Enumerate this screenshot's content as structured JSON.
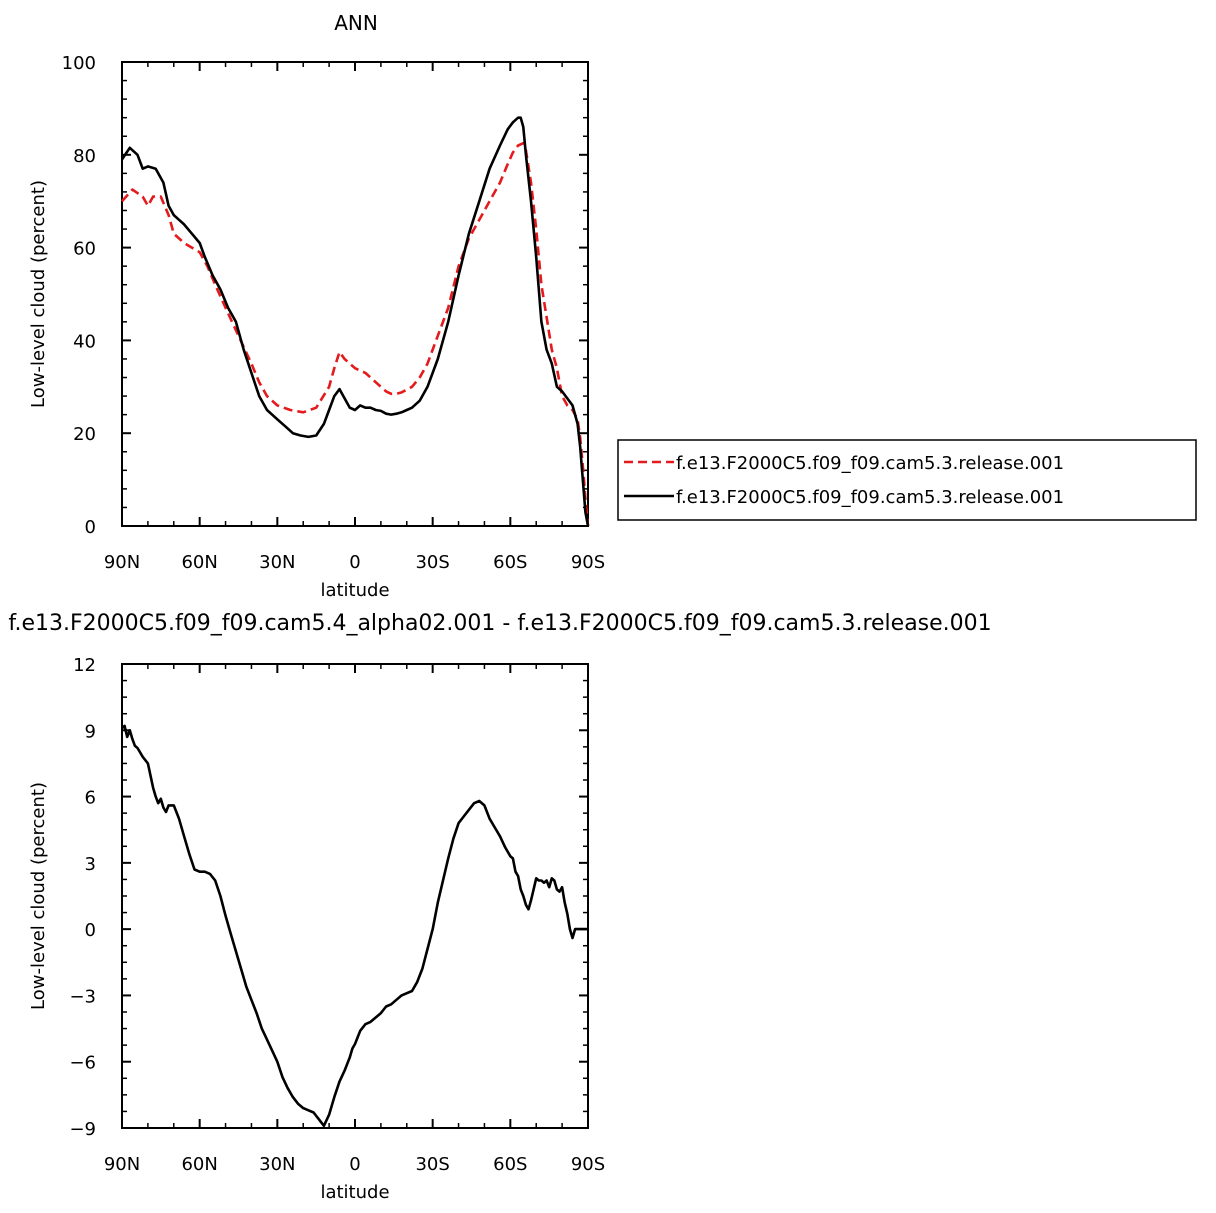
{
  "chart_data": [
    {
      "type": "line",
      "title": "ANN",
      "xlabel": "latitude",
      "ylabel": "Low-level cloud (percent)",
      "xlim": [
        90,
        -90
      ],
      "ylim": [
        0,
        100
      ],
      "x_ticks": [
        {
          "value": 90,
          "label": "90N"
        },
        {
          "value": 60,
          "label": "60N"
        },
        {
          "value": 30,
          "label": "30N"
        },
        {
          "value": 0,
          "label": "0"
        },
        {
          "value": -30,
          "label": "30S"
        },
        {
          "value": -60,
          "label": "60S"
        },
        {
          "value": -90,
          "label": "90S"
        }
      ],
      "y_ticks": [
        {
          "value": 0,
          "label": "0"
        },
        {
          "value": 20,
          "label": "20"
        },
        {
          "value": 40,
          "label": "40"
        },
        {
          "value": 60,
          "label": "60"
        },
        {
          "value": 80,
          "label": "80"
        },
        {
          "value": 100,
          "label": "100"
        }
      ],
      "legend_position": "right",
      "series": [
        {
          "name": "f.e13.F2000C5.f09_f09.cam5.3.release.001",
          "color": "#e41a1c",
          "dash": "dashed",
          "x": [
            90,
            86,
            82,
            80,
            78,
            75,
            72,
            70,
            66,
            63,
            60,
            57,
            54,
            50,
            45,
            40,
            37,
            34,
            30,
            25,
            20,
            15,
            10,
            8,
            6,
            4,
            2,
            0,
            -4,
            -8,
            -10,
            -12,
            -14,
            -16,
            -18,
            -22,
            -25,
            -28,
            -32,
            -36,
            -40,
            -44,
            -48,
            -52,
            -56,
            -59,
            -61,
            -63,
            -65,
            -66,
            -68,
            -70,
            -72,
            -74,
            -76,
            -78,
            -80,
            -82,
            -84,
            -86,
            -87,
            -88,
            -89,
            -90
          ],
          "y": [
            70,
            72.5,
            71,
            69,
            71,
            71,
            67,
            63,
            61,
            60,
            59,
            56,
            52,
            47,
            41,
            35,
            31,
            28,
            26,
            25,
            24.5,
            25.5,
            30,
            34,
            37.5,
            36,
            35,
            34,
            33,
            31,
            30,
            29,
            28.5,
            28.5,
            28.8,
            30,
            32,
            35,
            41,
            47,
            56,
            62,
            66,
            70,
            74,
            78,
            80.5,
            82,
            82.5,
            81,
            74,
            64,
            52,
            45,
            38,
            34,
            28,
            26,
            25,
            23,
            19,
            13,
            6,
            0
          ]
        },
        {
          "name": "f.e13.F2000C5.f09_f09.cam5.3.release.001",
          "color": "#000000",
          "dash": "solid",
          "x": [
            90,
            87,
            84,
            82,
            80,
            77,
            74,
            72,
            70,
            68,
            66,
            63,
            60,
            58,
            55,
            52,
            49,
            46,
            43,
            40,
            37,
            34,
            30,
            27,
            24,
            21,
            18,
            15,
            12,
            10,
            8,
            6,
            4,
            2,
            0,
            -2,
            -4,
            -6,
            -8,
            -10,
            -12,
            -14,
            -16,
            -18,
            -20,
            -22,
            -25,
            -28,
            -32,
            -36,
            -40,
            -44,
            -48,
            -52,
            -56,
            -59,
            -61,
            -63,
            -64,
            -65,
            -66,
            -68,
            -70,
            -72,
            -74,
            -76,
            -78,
            -80,
            -82,
            -84,
            -86,
            -87,
            -88,
            -89,
            -90
          ],
          "y": [
            79,
            81.5,
            80,
            77,
            77.5,
            77,
            74,
            69,
            67,
            66,
            65,
            63,
            61,
            58,
            54,
            51,
            47,
            44,
            38,
            33,
            28,
            25,
            23,
            21.5,
            20,
            19.5,
            19.2,
            19.5,
            22,
            25,
            28,
            29.5,
            27.5,
            25.5,
            25,
            26,
            25.5,
            25.5,
            25,
            24.8,
            24.2,
            24,
            24.2,
            24.5,
            25,
            25.5,
            27,
            30,
            36,
            44,
            54,
            63,
            70,
            77,
            82,
            85.5,
            87,
            88,
            88,
            86,
            80,
            70,
            58,
            44,
            38,
            35,
            30,
            29,
            27.5,
            26,
            22,
            17,
            10,
            3,
            0
          ]
        }
      ]
    },
    {
      "type": "line",
      "title": "f.e13.F2000C5.f09_f09.cam5.4_alpha02.001  -  f.e13.F2000C5.f09_f09.cam5.3.release.001",
      "xlabel": "latitude",
      "ylabel": "Low-level cloud (percent)",
      "xlim": [
        90,
        -90
      ],
      "ylim": [
        -9,
        12
      ],
      "x_ticks": [
        {
          "value": 90,
          "label": "90N"
        },
        {
          "value": 60,
          "label": "60N"
        },
        {
          "value": 30,
          "label": "30N"
        },
        {
          "value": 0,
          "label": "0"
        },
        {
          "value": -30,
          "label": "30S"
        },
        {
          "value": -60,
          "label": "60S"
        },
        {
          "value": -90,
          "label": "90S"
        }
      ],
      "y_ticks": [
        {
          "value": -9,
          "label": "−9"
        },
        {
          "value": -6,
          "label": "−6"
        },
        {
          "value": -3,
          "label": "−3"
        },
        {
          "value": 0,
          "label": "0"
        },
        {
          "value": 3,
          "label": "3"
        },
        {
          "value": 6,
          "label": "6"
        },
        {
          "value": 9,
          "label": "9"
        },
        {
          "value": 12,
          "label": "12"
        }
      ],
      "series": [
        {
          "name": "",
          "color": "#000000",
          "dash": "solid",
          "x": [
            90,
            89,
            88,
            87,
            86,
            85,
            84,
            83,
            82,
            80,
            78,
            77,
            76,
            75,
            74,
            73,
            72,
            71,
            70,
            68,
            66,
            64,
            62,
            60,
            58,
            56,
            54,
            52,
            50,
            48,
            46,
            44,
            42,
            40,
            38,
            36,
            34,
            32,
            30,
            28,
            26,
            24,
            22,
            20,
            18,
            16,
            14,
            12,
            10,
            8,
            6,
            4,
            2,
            1,
            0,
            -1,
            -2,
            -4,
            -6,
            -8,
            -10,
            -12,
            -14,
            -16,
            -18,
            -20,
            -22,
            -24,
            -26,
            -28,
            -30,
            -32,
            -34,
            -36,
            -38,
            -40,
            -42,
            -44,
            -46,
            -48,
            -50,
            -52,
            -54,
            -56,
            -58,
            -60,
            -61,
            -62,
            -63,
            -64,
            -65,
            -66,
            -67,
            -68,
            -69,
            -70,
            -71,
            -72,
            -73,
            -74,
            -75,
            -76,
            -77,
            -78,
            -79,
            -80,
            -81,
            -82,
            -83,
            -84,
            -85,
            -86,
            -87,
            -88,
            -89,
            -90
          ],
          "y": [
            9.1,
            9.2,
            8.7,
            9.0,
            8.6,
            8.3,
            8.2,
            8.0,
            7.8,
            7.5,
            6.4,
            6.0,
            5.7,
            5.9,
            5.5,
            5.3,
            5.6,
            5.6,
            5.6,
            5.0,
            4.2,
            3.4,
            2.7,
            2.6,
            2.6,
            2.5,
            2.2,
            1.5,
            0.6,
            -0.2,
            -1.0,
            -1.8,
            -2.6,
            -3.2,
            -3.8,
            -4.5,
            -5.0,
            -5.5,
            -6.0,
            -6.7,
            -7.2,
            -7.6,
            -7.9,
            -8.1,
            -8.2,
            -8.3,
            -8.6,
            -8.9,
            -8.4,
            -7.6,
            -6.9,
            -6.4,
            -5.8,
            -5.4,
            -5.2,
            -4.9,
            -4.6,
            -4.3,
            -4.2,
            -4.0,
            -3.8,
            -3.5,
            -3.4,
            -3.2,
            -3.0,
            -2.9,
            -2.8,
            -2.4,
            -1.8,
            -0.9,
            0.0,
            1.2,
            2.2,
            3.2,
            4.1,
            4.8,
            5.1,
            5.4,
            5.7,
            5.8,
            5.6,
            5.0,
            4.6,
            4.2,
            3.7,
            3.3,
            3.2,
            2.6,
            2.4,
            1.8,
            1.5,
            1.1,
            0.9,
            1.3,
            1.8,
            2.3,
            2.2,
            2.2,
            2.1,
            2.2,
            1.9,
            2.3,
            2.2,
            1.8,
            1.7,
            1.9,
            1.2,
            0.7,
            0.0,
            -0.4,
            0.0,
            0.0,
            0.0,
            0.0,
            0.0,
            0.0
          ]
        }
      ]
    }
  ]
}
